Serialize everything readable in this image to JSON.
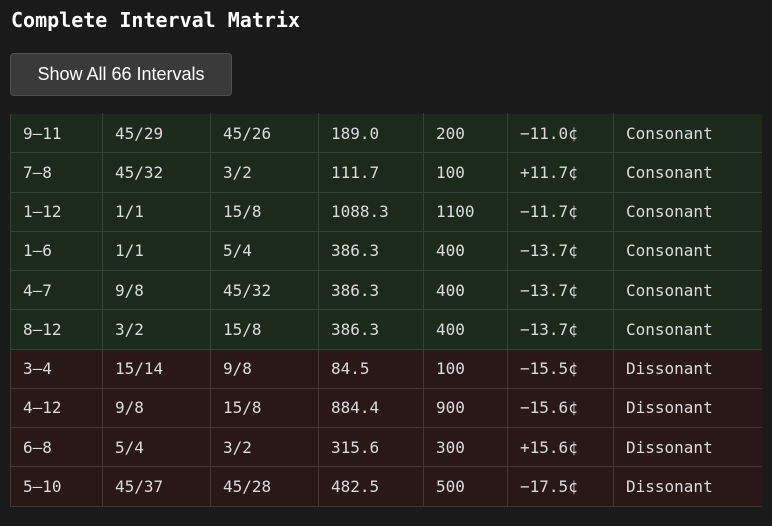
{
  "page": {
    "title": "Complete Interval Matrix"
  },
  "controls": {
    "show_all_label": "Show All 66 Intervals"
  },
  "colors": {
    "consonant_row": "#1b2a1b",
    "dissonant_row": "#2a1818",
    "background": "#1a1a1a"
  },
  "table": {
    "rows": [
      {
        "pair": "9–11",
        "ratio_a": "45/29",
        "ratio_b": "45/26",
        "cents": "189.0",
        "et": "200",
        "deviation": "−11.0¢",
        "quality": "Consonant"
      },
      {
        "pair": "7–8",
        "ratio_a": "45/32",
        "ratio_b": "3/2",
        "cents": "111.7",
        "et": "100",
        "deviation": "+11.7¢",
        "quality": "Consonant"
      },
      {
        "pair": "1–12",
        "ratio_a": "1/1",
        "ratio_b": "15/8",
        "cents": "1088.3",
        "et": "1100",
        "deviation": "−11.7¢",
        "quality": "Consonant"
      },
      {
        "pair": "1–6",
        "ratio_a": "1/1",
        "ratio_b": "5/4",
        "cents": "386.3",
        "et": "400",
        "deviation": "−13.7¢",
        "quality": "Consonant"
      },
      {
        "pair": "4–7",
        "ratio_a": "9/8",
        "ratio_b": "45/32",
        "cents": "386.3",
        "et": "400",
        "deviation": "−13.7¢",
        "quality": "Consonant"
      },
      {
        "pair": "8–12",
        "ratio_a": "3/2",
        "ratio_b": "15/8",
        "cents": "386.3",
        "et": "400",
        "deviation": "−13.7¢",
        "quality": "Consonant"
      },
      {
        "pair": "3–4",
        "ratio_a": "15/14",
        "ratio_b": "9/8",
        "cents": "84.5",
        "et": "100",
        "deviation": "−15.5¢",
        "quality": "Dissonant"
      },
      {
        "pair": "4–12",
        "ratio_a": "9/8",
        "ratio_b": "15/8",
        "cents": "884.4",
        "et": "900",
        "deviation": "−15.6¢",
        "quality": "Dissonant"
      },
      {
        "pair": "6–8",
        "ratio_a": "5/4",
        "ratio_b": "3/2",
        "cents": "315.6",
        "et": "300",
        "deviation": "+15.6¢",
        "quality": "Dissonant"
      },
      {
        "pair": "5–10",
        "ratio_a": "45/37",
        "ratio_b": "45/28",
        "cents": "482.5",
        "et": "500",
        "deviation": "−17.5¢",
        "quality": "Dissonant"
      }
    ]
  }
}
